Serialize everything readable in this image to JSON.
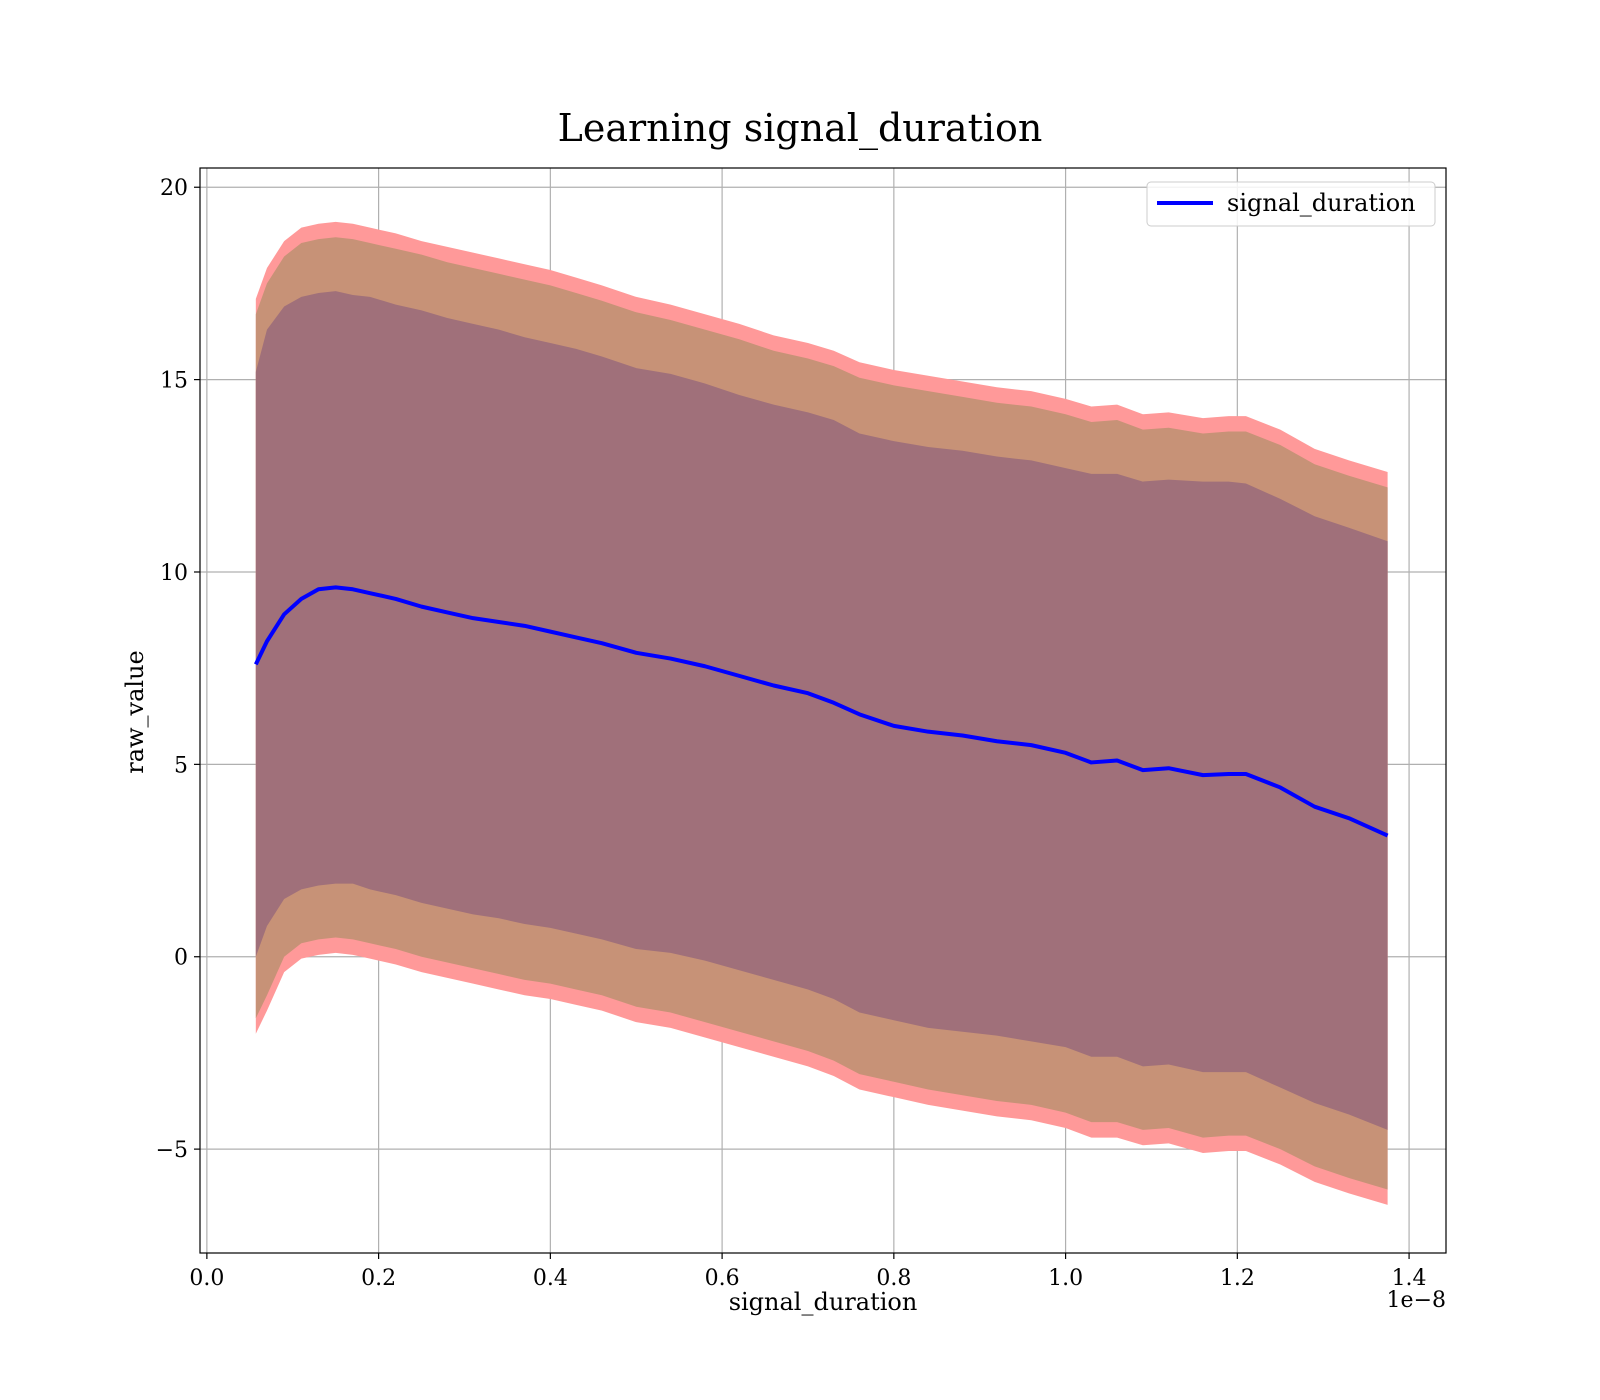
{
  "chart_data": {
    "type": "line",
    "title": "Learning signal_duration",
    "xlabel": "signal_duration",
    "ylabel": "raw_value",
    "x_offset_text": "1e−8",
    "xlim": [
      -0.008,
      1.443
    ],
    "ylim": [
      -7.7,
      20.5
    ],
    "x_ticks": [
      0.0,
      0.2,
      0.4,
      0.6,
      0.8,
      1.0,
      1.2,
      1.4
    ],
    "x_tick_labels": [
      "0.0",
      "0.2",
      "0.4",
      "0.6",
      "0.8",
      "1.0",
      "1.2",
      "1.4"
    ],
    "y_ticks": [
      -5,
      0,
      5,
      10,
      15,
      20
    ],
    "y_tick_labels": [
      "−5",
      "0",
      "5",
      "10",
      "15",
      "20"
    ],
    "grid": true,
    "legend_position": "top-right",
    "x": [
      0.057,
      0.07,
      0.09,
      0.11,
      0.13,
      0.15,
      0.17,
      0.19,
      0.22,
      0.25,
      0.28,
      0.31,
      0.34,
      0.37,
      0.4,
      0.43,
      0.46,
      0.5,
      0.54,
      0.58,
      0.62,
      0.66,
      0.7,
      0.73,
      0.76,
      0.8,
      0.84,
      0.88,
      0.92,
      0.96,
      1.0,
      1.03,
      1.06,
      1.09,
      1.12,
      1.16,
      1.19,
      1.21,
      1.25,
      1.29,
      1.33,
      1.375
    ],
    "series": [
      {
        "name": "signal_duration",
        "color": "#0000ff",
        "mean": [
          7.6,
          8.2,
          8.9,
          9.3,
          9.55,
          9.6,
          9.55,
          9.45,
          9.3,
          9.1,
          8.95,
          8.8,
          8.7,
          8.6,
          8.45,
          8.3,
          8.15,
          7.9,
          7.75,
          7.55,
          7.3,
          7.05,
          6.85,
          6.6,
          6.3,
          6.0,
          5.85,
          5.75,
          5.6,
          5.5,
          5.3,
          5.05,
          5.1,
          4.85,
          4.9,
          4.72,
          4.75,
          4.75,
          4.4,
          3.9,
          3.6,
          3.15
        ],
        "band_1sd_upper": [
          15.2,
          16.3,
          16.9,
          17.15,
          17.25,
          17.3,
          17.2,
          17.15,
          16.95,
          16.8,
          16.6,
          16.45,
          16.3,
          16.1,
          15.95,
          15.8,
          15.6,
          15.3,
          15.15,
          14.9,
          14.6,
          14.35,
          14.15,
          13.95,
          13.6,
          13.4,
          13.25,
          13.15,
          13.0,
          12.9,
          12.7,
          12.55,
          12.55,
          12.35,
          12.4,
          12.35,
          12.35,
          12.3,
          11.9,
          11.45,
          11.15,
          10.8
        ],
        "band_1sd_lower": [
          0.0,
          0.8,
          1.5,
          1.75,
          1.85,
          1.9,
          1.9,
          1.75,
          1.6,
          1.4,
          1.25,
          1.1,
          1.0,
          0.85,
          0.75,
          0.6,
          0.45,
          0.2,
          0.1,
          -0.1,
          -0.35,
          -0.6,
          -0.85,
          -1.1,
          -1.45,
          -1.65,
          -1.85,
          -1.95,
          -2.05,
          -2.2,
          -2.35,
          -2.6,
          -2.6,
          -2.85,
          -2.8,
          -3.0,
          -3.0,
          -3.0,
          -3.4,
          -3.8,
          -4.1,
          -4.5
        ],
        "band_2sd_upper": [
          16.7,
          17.5,
          18.2,
          18.55,
          18.65,
          18.7,
          18.65,
          18.55,
          18.4,
          18.25,
          18.05,
          17.9,
          17.75,
          17.6,
          17.45,
          17.25,
          17.05,
          16.75,
          16.55,
          16.3,
          16.05,
          15.75,
          15.55,
          15.35,
          15.05,
          14.85,
          14.7,
          14.55,
          14.4,
          14.3,
          14.1,
          13.9,
          13.95,
          13.7,
          13.75,
          13.6,
          13.65,
          13.65,
          13.3,
          12.8,
          12.5,
          12.2
        ],
        "band_2sd_lower": [
          -1.6,
          -1.0,
          0.0,
          0.35,
          0.45,
          0.5,
          0.45,
          0.35,
          0.2,
          0.0,
          -0.15,
          -0.3,
          -0.45,
          -0.6,
          -0.7,
          -0.85,
          -1.0,
          -1.3,
          -1.45,
          -1.7,
          -1.95,
          -2.2,
          -2.45,
          -2.7,
          -3.05,
          -3.25,
          -3.45,
          -3.6,
          -3.75,
          -3.85,
          -4.05,
          -4.3,
          -4.3,
          -4.5,
          -4.45,
          -4.7,
          -4.65,
          -4.65,
          -5.0,
          -5.45,
          -5.75,
          -6.05
        ],
        "band_3sd_upper": [
          17.1,
          17.9,
          18.6,
          18.95,
          19.05,
          19.1,
          19.05,
          18.95,
          18.8,
          18.6,
          18.45,
          18.3,
          18.15,
          18.0,
          17.85,
          17.65,
          17.45,
          17.15,
          16.95,
          16.7,
          16.45,
          16.15,
          15.95,
          15.75,
          15.45,
          15.25,
          15.1,
          14.95,
          14.8,
          14.7,
          14.5,
          14.3,
          14.35,
          14.1,
          14.15,
          14.0,
          14.05,
          14.05,
          13.7,
          13.2,
          12.9,
          12.6
        ],
        "band_3sd_lower": [
          -2.0,
          -1.4,
          -0.4,
          -0.05,
          0.05,
          0.1,
          0.05,
          -0.05,
          -0.2,
          -0.4,
          -0.55,
          -0.7,
          -0.85,
          -1.0,
          -1.1,
          -1.25,
          -1.4,
          -1.7,
          -1.85,
          -2.1,
          -2.35,
          -2.6,
          -2.85,
          -3.1,
          -3.45,
          -3.65,
          -3.85,
          -4.0,
          -4.15,
          -4.25,
          -4.45,
          -4.7,
          -4.7,
          -4.9,
          -4.85,
          -5.1,
          -5.05,
          -5.05,
          -5.4,
          -5.85,
          -6.15,
          -6.45
        ]
      }
    ],
    "band_colors": {
      "band_3sd": "#ff9999",
      "band_2sd": "#c79277",
      "band_1sd": "#a0707a"
    }
  }
}
